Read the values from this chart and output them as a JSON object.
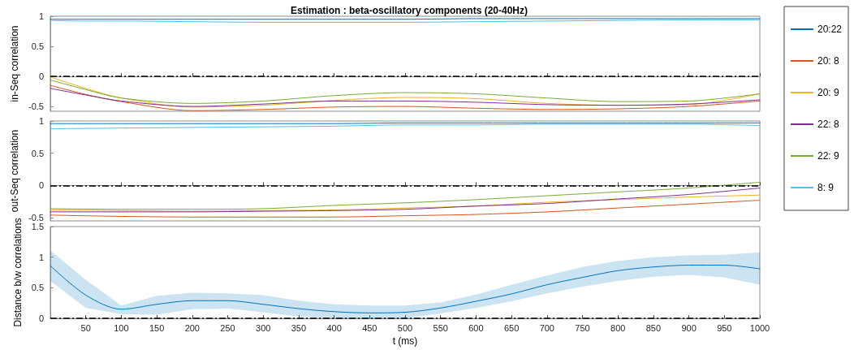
{
  "chart_data": [
    {
      "type": "line",
      "title": "Estimation : beta-oscillatory components (20-40Hz)",
      "ylabel": "in-Seq correlation",
      "x": [
        0,
        50,
        100,
        200,
        300,
        400,
        500,
        600,
        700,
        800,
        900,
        1000
      ],
      "xlim": [
        0,
        1000
      ],
      "ylim": [
        -0.58,
        1
      ],
      "xticks": [
        {
          "value": 100,
          "label": null
        },
        {
          "value": 200,
          "label": null
        },
        {
          "value": 300,
          "label": null
        },
        {
          "value": 400,
          "label": null
        },
        {
          "value": 500,
          "label": null
        },
        {
          "value": 600,
          "label": null
        },
        {
          "value": 700,
          "label": null
        },
        {
          "value": 800,
          "label": null
        },
        {
          "value": 900,
          "label": null
        },
        {
          "value": 1000,
          "label": null
        }
      ],
      "yticks": [
        -0.5,
        0,
        0.5,
        1
      ],
      "tick_labels": "y",
      "grid": false,
      "marker": "none",
      "line_style": "solid",
      "legend": "right",
      "ref_lines": [
        {
          "axis": "y",
          "value": 0,
          "color": "#000000",
          "line_style": "dashdot"
        }
      ],
      "series": [
        {
          "name": "20:22",
          "color": "#0072bd",
          "values": [
            0.95,
            0.95,
            0.95,
            0.95,
            0.95,
            0.95,
            0.95,
            0.96,
            0.96,
            0.96,
            0.96,
            0.96
          ]
        },
        {
          "name": "20: 8",
          "color": "#d95319",
          "values": [
            -0.15,
            -0.3,
            -0.42,
            -0.57,
            -0.55,
            -0.51,
            -0.5,
            -0.53,
            -0.55,
            -0.54,
            -0.5,
            -0.41
          ]
        },
        {
          "name": "20: 9",
          "color": "#edb120",
          "values": [
            -0.01,
            -0.2,
            -0.36,
            -0.51,
            -0.48,
            -0.4,
            -0.35,
            -0.37,
            -0.45,
            -0.48,
            -0.47,
            -0.29
          ]
        },
        {
          "name": "22: 8",
          "color": "#7e2f8e",
          "values": [
            -0.2,
            -0.31,
            -0.41,
            -0.5,
            -0.46,
            -0.41,
            -0.41,
            -0.43,
            -0.47,
            -0.48,
            -0.46,
            -0.39
          ]
        },
        {
          "name": "22: 9",
          "color": "#77ac30",
          "values": [
            -0.06,
            -0.22,
            -0.36,
            -0.45,
            -0.41,
            -0.32,
            -0.27,
            -0.29,
            -0.36,
            -0.42,
            -0.41,
            -0.29
          ]
        },
        {
          "name": "8: 9",
          "color": "#4dbeee",
          "values": [
            0.93,
            0.92,
            0.92,
            0.91,
            0.9,
            0.9,
            0.9,
            0.91,
            0.92,
            0.93,
            0.94,
            0.94
          ]
        }
      ]
    },
    {
      "type": "line",
      "ylabel": "out-Seq correlation",
      "x": [
        0,
        100,
        200,
        300,
        400,
        500,
        600,
        700,
        800,
        900,
        1000
      ],
      "xlim": [
        0,
        1000
      ],
      "ylim": [
        -0.55,
        1
      ],
      "xticks": [
        {
          "value": 100,
          "label": null
        },
        {
          "value": 200,
          "label": null
        },
        {
          "value": 300,
          "label": null
        },
        {
          "value": 400,
          "label": null
        },
        {
          "value": 500,
          "label": null
        },
        {
          "value": 600,
          "label": null
        },
        {
          "value": 700,
          "label": null
        },
        {
          "value": 800,
          "label": null
        },
        {
          "value": 900,
          "label": null
        },
        {
          "value": 1000,
          "label": null
        }
      ],
      "yticks": [
        -0.5,
        0,
        0.5,
        1
      ],
      "tick_labels": "y",
      "grid": false,
      "marker": "none",
      "line_style": "solid",
      "ref_lines": [
        {
          "axis": "y",
          "value": 0,
          "color": "#000000",
          "line_style": "dashdot"
        }
      ],
      "series": [
        {
          "color": "#0072bd",
          "values": [
            0.96,
            0.96,
            0.96,
            0.96,
            0.96,
            0.97,
            0.97,
            0.97,
            0.97,
            0.97,
            0.97
          ]
        },
        {
          "color": "#d95319",
          "values": [
            -0.46,
            -0.48,
            -0.49,
            -0.49,
            -0.49,
            -0.47,
            -0.45,
            -0.41,
            -0.35,
            -0.29,
            -0.23
          ]
        },
        {
          "color": "#edb120",
          "values": [
            -0.38,
            -0.39,
            -0.4,
            -0.39,
            -0.38,
            -0.35,
            -0.32,
            -0.26,
            -0.22,
            -0.18,
            -0.15
          ]
        },
        {
          "color": "#7e2f8e",
          "values": [
            -0.41,
            -0.41,
            -0.41,
            -0.4,
            -0.39,
            -0.37,
            -0.32,
            -0.28,
            -0.21,
            -0.14,
            -0.04
          ]
        },
        {
          "color": "#77ac30",
          "values": [
            -0.36,
            -0.37,
            -0.37,
            -0.36,
            -0.31,
            -0.27,
            -0.22,
            -0.16,
            -0.1,
            -0.04,
            0.05
          ]
        },
        {
          "color": "#4dbeee",
          "values": [
            0.88,
            0.89,
            0.9,
            0.91,
            0.92,
            0.94,
            0.94,
            0.95,
            0.95,
            0.95,
            0.93
          ]
        }
      ]
    },
    {
      "type": "line",
      "xlabel": "t (ms)",
      "ylabel": "Distance b/w correlations",
      "x": [
        0,
        50,
        100,
        150,
        200,
        250,
        300,
        350,
        400,
        450,
        500,
        550,
        600,
        650,
        700,
        750,
        800,
        850,
        900,
        950,
        1000
      ],
      "xlim": [
        0,
        1000
      ],
      "ylim": [
        0,
        1.5
      ],
      "xticks": [
        50,
        100,
        150,
        200,
        250,
        300,
        350,
        400,
        450,
        500,
        550,
        600,
        650,
        700,
        750,
        800,
        850,
        900,
        950,
        1000
      ],
      "yticks": [
        0,
        0.5,
        1,
        1.5
      ],
      "grid": false,
      "marker": "none",
      "line_style": "solid",
      "ref_lines": [
        {
          "axis": "y",
          "value": 0,
          "color": "#000000",
          "line_style": "dashdot"
        }
      ],
      "series": [
        {
          "color": "#0072bd",
          "values": [
            0.86,
            0.38,
            0.15,
            0.23,
            0.29,
            0.29,
            0.23,
            0.16,
            0.11,
            0.09,
            0.1,
            0.17,
            0.28,
            0.4,
            0.55,
            0.67,
            0.78,
            0.84,
            0.87,
            0.87,
            0.81
          ],
          "upper": [
            1.11,
            0.63,
            0.21,
            0.37,
            0.42,
            0.41,
            0.38,
            0.29,
            0.23,
            0.21,
            0.21,
            0.26,
            0.39,
            0.55,
            0.7,
            0.84,
            0.94,
            1.0,
            1.03,
            1.04,
            1.08
          ],
          "lower": [
            0.61,
            0.17,
            0.07,
            0.06,
            0.15,
            0.16,
            0.1,
            0.03,
            0,
            0,
            0,
            0.08,
            0.17,
            0.28,
            0.41,
            0.52,
            0.61,
            0.68,
            0.71,
            0.67,
            0.55
          ]
        }
      ]
    }
  ]
}
